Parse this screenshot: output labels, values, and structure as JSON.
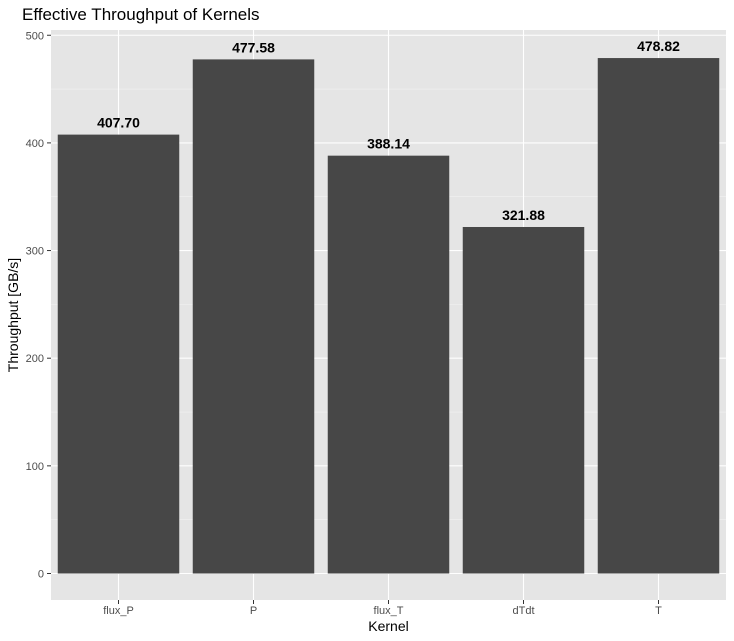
{
  "chart_data": {
    "type": "bar",
    "title": "Effective Throughput of Kernels",
    "xlabel": "Kernel",
    "ylabel": "Throughput [GB/s]",
    "categories": [
      "flux_P",
      "P",
      "flux_T",
      "dTdt",
      "T"
    ],
    "values": [
      407.7,
      477.58,
      388.14,
      321.88,
      478.82
    ],
    "value_labels": [
      "407.70",
      "477.58",
      "388.14",
      "321.88",
      "478.82"
    ],
    "ylim": [
      0,
      500
    ],
    "y_ticks": [
      0,
      100,
      200,
      300,
      400,
      500
    ],
    "y_tick_labels": [
      "0",
      "100",
      "200",
      "300",
      "400",
      "500"
    ],
    "grid": true,
    "legend": "none",
    "colors": {
      "bar": "#474747",
      "panel_background": "#e5e5e5",
      "grid_major": "#ffffff",
      "grid_minor": "#f2f2f2",
      "axis_text": "#4d4d4d",
      "text": "#000000"
    }
  }
}
